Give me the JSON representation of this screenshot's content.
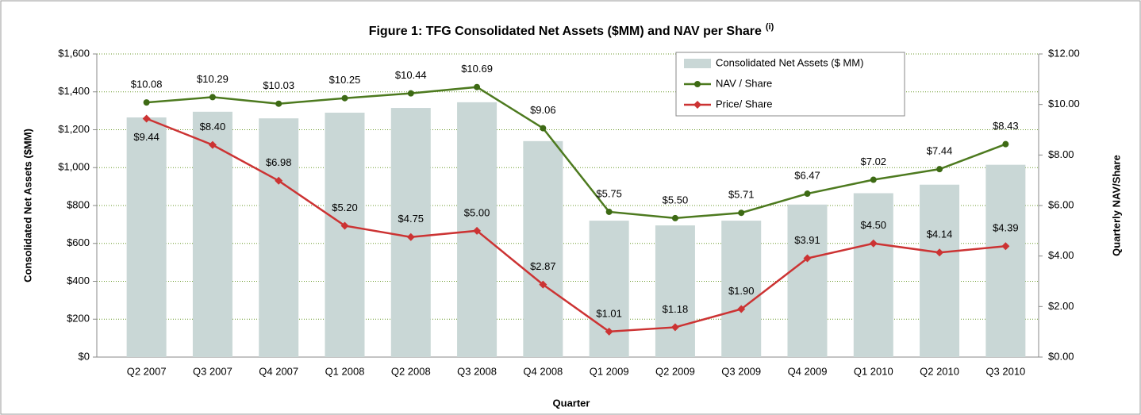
{
  "chart_data": {
    "type": "bar-line",
    "title": "Figure 1: TFG Consolidated Net Assets ($MM) and NAV per Share",
    "title_note": "(i)",
    "xlabel": "Quarter",
    "ylabel": "Consolidated Net Assets ($MM)",
    "y2label": "Quarterly NAV/Share",
    "categories": [
      "Q2 2007",
      "Q3 2007",
      "Q4 2007",
      "Q1 2008",
      "Q2 2008",
      "Q3 2008",
      "Q4 2008",
      "Q1 2009",
      "Q2 2009",
      "Q3 2009",
      "Q4 2009",
      "Q1 2010",
      "Q2 2010",
      "Q3 2010"
    ],
    "ylim": [
      0,
      1600
    ],
    "yticks": [
      {
        "value": 0,
        "label": "$0"
      },
      {
        "value": 200,
        "label": "$200"
      },
      {
        "value": 400,
        "label": "$400"
      },
      {
        "value": 600,
        "label": "$600"
      },
      {
        "value": 800,
        "label": "$800"
      },
      {
        "value": 1000,
        "label": "$1,000"
      },
      {
        "value": 1200,
        "label": "$1,200"
      },
      {
        "value": 1400,
        "label": "$1,400"
      },
      {
        "value": 1600,
        "label": "$1,600"
      }
    ],
    "y2lim": [
      0,
      12
    ],
    "y2ticks": [
      {
        "value": 0,
        "label": "$0.00"
      },
      {
        "value": 2,
        "label": "$2.00"
      },
      {
        "value": 4,
        "label": "$4.00"
      },
      {
        "value": 6,
        "label": "$6.00"
      },
      {
        "value": 8,
        "label": "$8.00"
      },
      {
        "value": 10,
        "label": "$10.00"
      },
      {
        "value": 12,
        "label": "$12.00"
      }
    ],
    "grid": true,
    "series": [
      {
        "name": "Consolidated Net Assets ($ MM)",
        "type": "bar",
        "color": "#c9d7d6",
        "values": [
          1265,
          1295,
          1260,
          1290,
          1315,
          1345,
          1140,
          720,
          695,
          720,
          805,
          865,
          910,
          1015
        ]
      },
      {
        "name": "NAV / Share",
        "type": "line",
        "axis": "y2",
        "color": "#4d7a1f",
        "marker": "circle",
        "values": [
          10.08,
          10.29,
          10.03,
          10.25,
          10.44,
          10.69,
          9.06,
          5.75,
          5.5,
          5.71,
          6.47,
          7.02,
          7.44,
          8.43
        ],
        "value_labels": [
          "$10.08",
          "$10.29",
          "$10.03",
          "$10.25",
          "$10.44",
          "$10.69",
          "$9.06",
          "$5.75",
          "$5.50",
          "$5.71",
          "$6.47",
          "$7.02",
          "$7.44",
          "$8.43"
        ]
      },
      {
        "name": "Price/ Share",
        "type": "line",
        "axis": "y2",
        "color": "#cc3333",
        "marker": "diamond",
        "values": [
          9.44,
          8.4,
          6.98,
          5.2,
          4.75,
          5.0,
          2.87,
          1.01,
          1.18,
          1.9,
          3.91,
          4.5,
          4.14,
          4.39
        ],
        "value_labels": [
          "$9.44",
          "$8.40",
          "$6.98",
          "$5.20",
          "$4.75",
          "$5.00",
          "$2.87",
          "$1.01",
          "$1.18",
          "$1.90",
          "$3.91",
          "$4.50",
          "$4.14",
          "$4.39"
        ]
      }
    ]
  }
}
